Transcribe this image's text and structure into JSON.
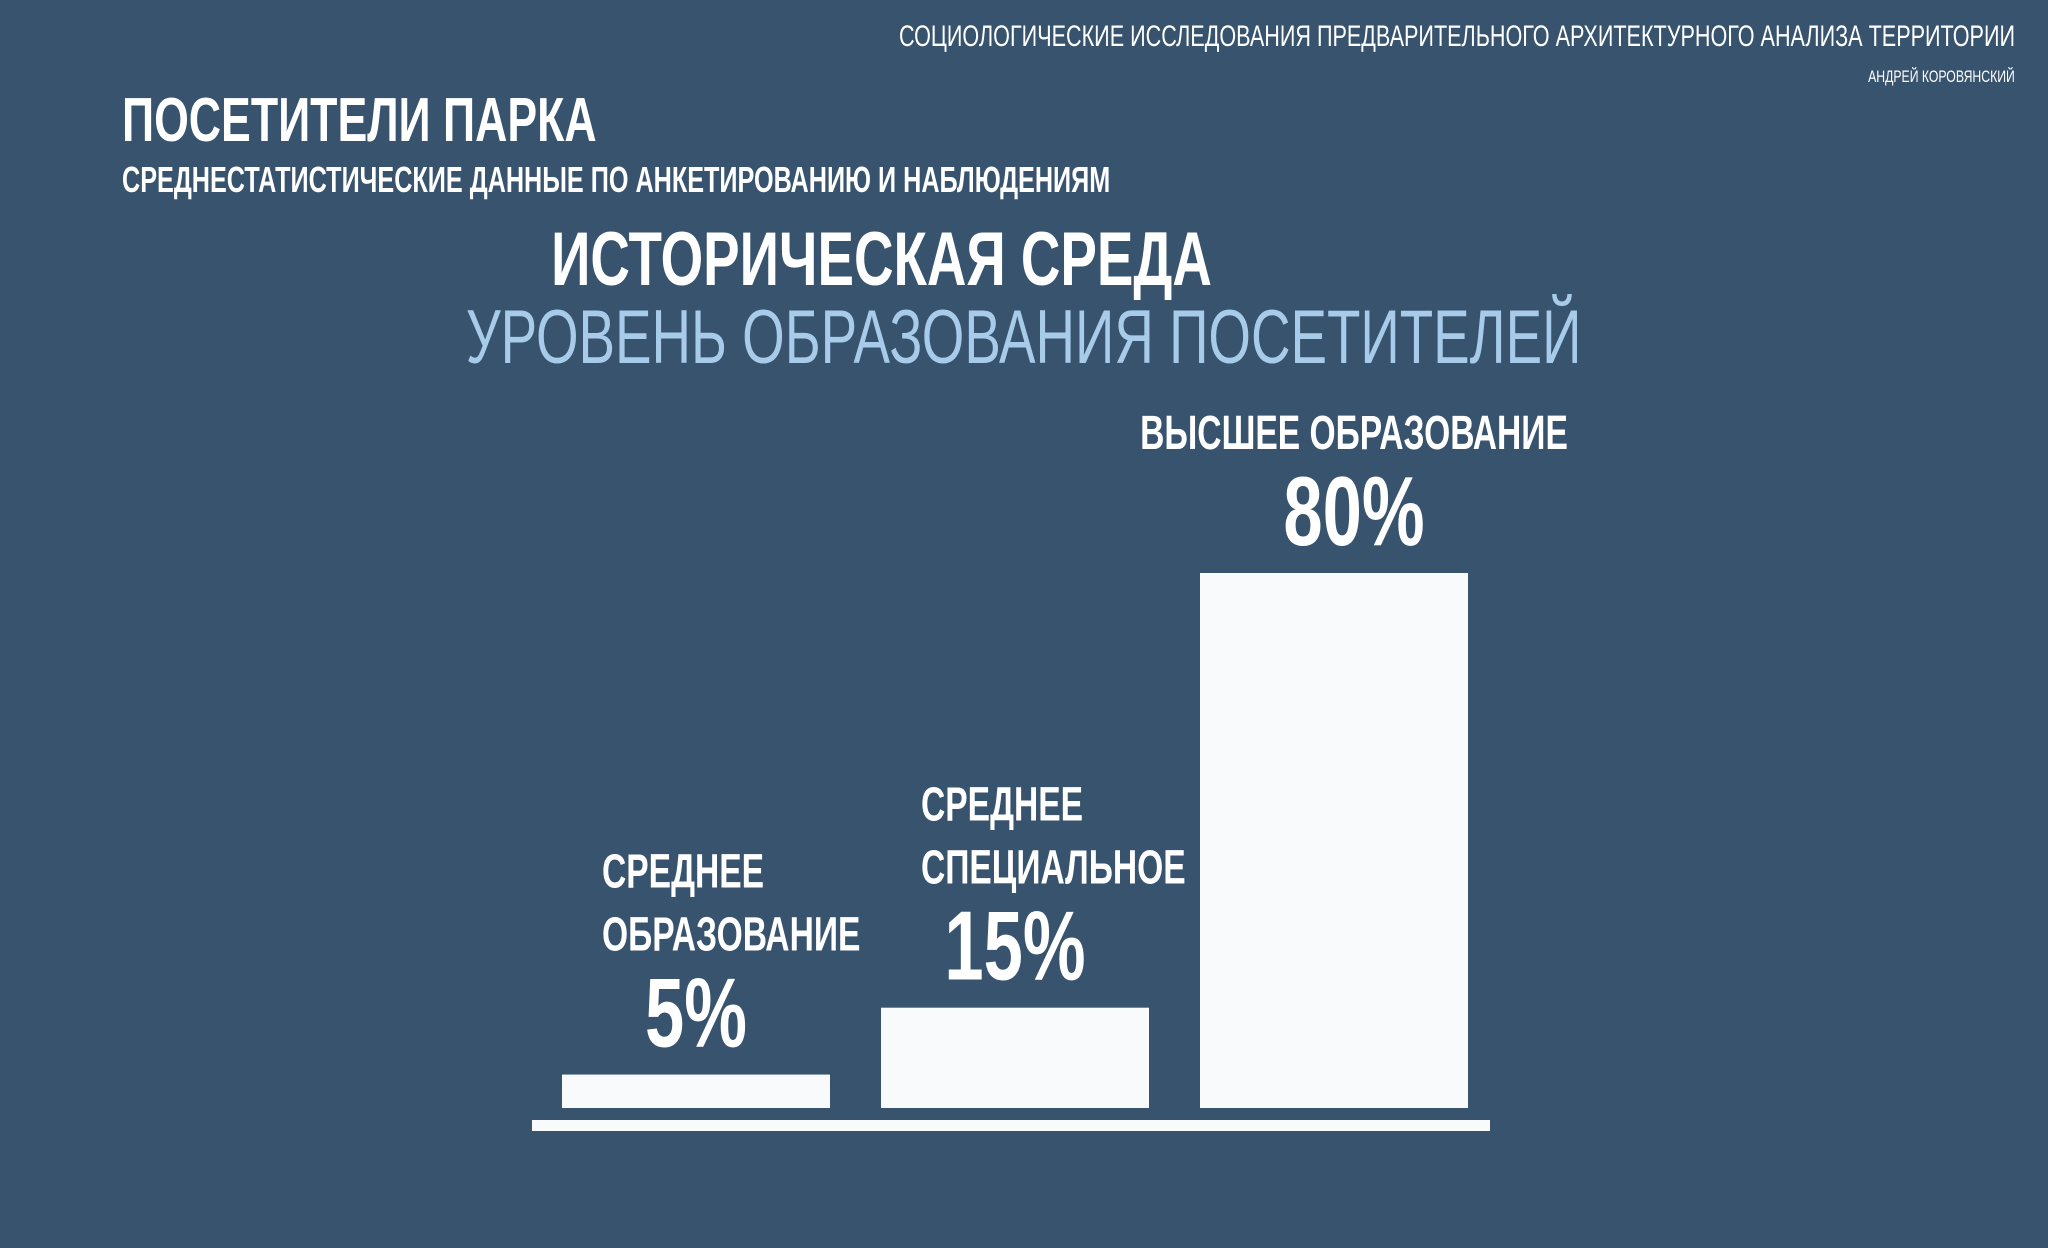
{
  "header": {
    "project_title": "Социологические исследования предварительного архитектурного анализа территории",
    "author": "Андрей Коровянский"
  },
  "page": {
    "title": "Посетители парка",
    "subtitle": "Среднестатистические данные по анкетированию и наблюдениям"
  },
  "chart_data": {
    "type": "bar",
    "title": "Историческая среда",
    "subtitle": "Уровень образования посетителей",
    "categories": [
      [
        "Среднее",
        "образование"
      ],
      [
        "Среднее",
        "специальное"
      ],
      [
        "Высшее образование"
      ]
    ],
    "values": [
      5,
      15,
      80
    ],
    "value_labels": [
      "5%",
      "15%",
      "80%"
    ],
    "unit": "%",
    "ylim": [
      0,
      80
    ],
    "grid": false,
    "legend": "none",
    "colors": {
      "background": "#37536e",
      "bar": "#f8fafc",
      "baseline": "#f8fafc",
      "subtitle": "#a7cbe9"
    }
  }
}
